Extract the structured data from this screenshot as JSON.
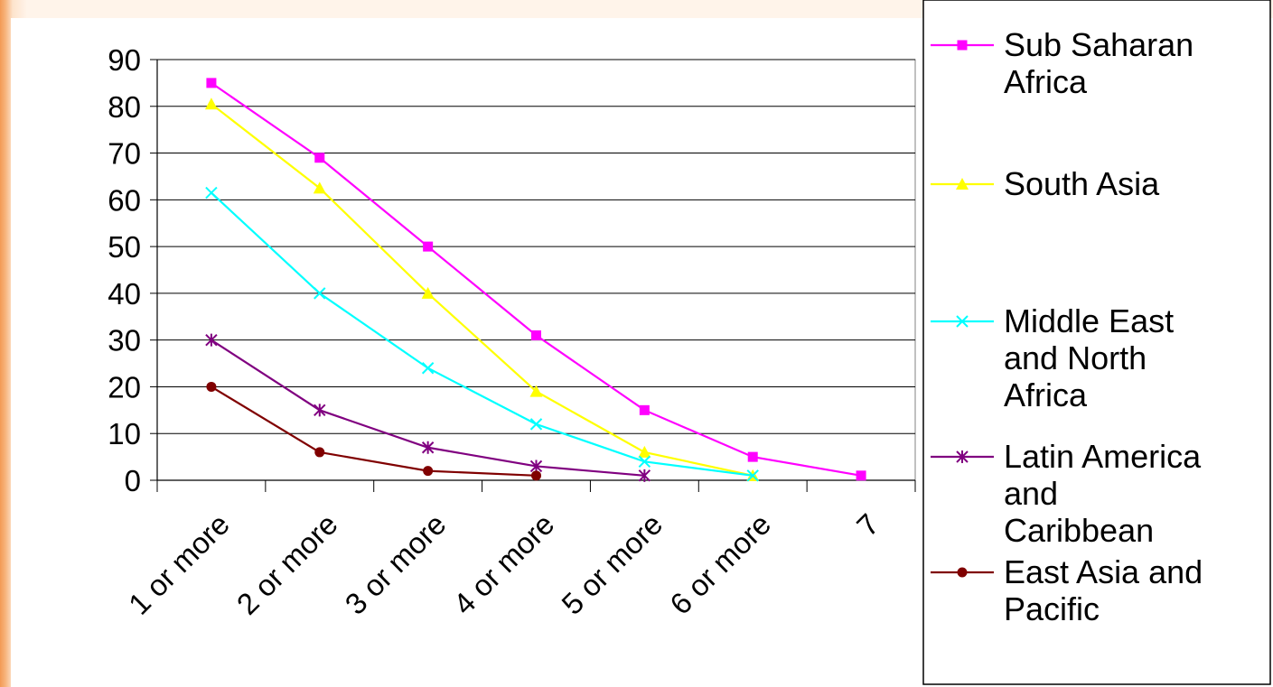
{
  "chart_data": {
    "type": "line",
    "categories": [
      "1 or more",
      "2 or more",
      "3 or more",
      "4 or more",
      "5 or more",
      "6 or more",
      "7"
    ],
    "ylim": [
      0,
      90
    ],
    "yticks": [
      0,
      10,
      20,
      30,
      40,
      50,
      60,
      70,
      80,
      90
    ],
    "grid": true,
    "legend_position": "right",
    "series": [
      {
        "name": "Sub Saharan Africa",
        "color": "#ff00ff",
        "marker": "square",
        "values": [
          85,
          69,
          50,
          31,
          15,
          5,
          1
        ]
      },
      {
        "name": "South Asia",
        "color": "#ffff00",
        "marker": "triangle",
        "values": [
          80.5,
          62.5,
          40,
          19,
          6,
          1,
          null
        ]
      },
      {
        "name": "Middle East and North Africa",
        "color": "#00ffff",
        "marker": "x",
        "values": [
          61.5,
          40,
          24,
          12,
          4,
          1,
          null
        ]
      },
      {
        "name": "Latin America and Caribbean",
        "color": "#800080",
        "marker": "asterisk",
        "values": [
          30,
          15,
          7,
          3,
          1,
          null,
          null
        ]
      },
      {
        "name": "East Asia and Pacific",
        "color": "#800000",
        "marker": "circle",
        "values": [
          20,
          6,
          2,
          1,
          null,
          null,
          null
        ]
      }
    ]
  },
  "legend": {
    "items": [
      {
        "lines": [
          "Sub Saharan",
          "Africa"
        ]
      },
      {
        "lines": [
          "South Asia"
        ]
      },
      {
        "lines": [
          "Middle East",
          "and North",
          "Africa"
        ]
      },
      {
        "lines": [
          "Latin America",
          "and",
          "Caribbean"
        ]
      },
      {
        "lines": [
          "East Asia and",
          "Pacific"
        ]
      }
    ]
  }
}
